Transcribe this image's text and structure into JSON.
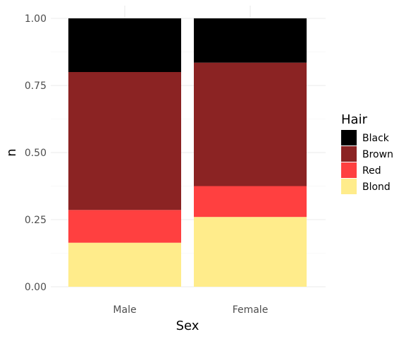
{
  "chart_data": {
    "type": "bar",
    "stacked": true,
    "categories": [
      "Male",
      "Female"
    ],
    "series": [
      {
        "name": "Black",
        "values": [
          0.2,
          0.165
        ],
        "color": "#000000"
      },
      {
        "name": "Brown",
        "values": [
          0.514,
          0.46
        ],
        "color": "#8B2323"
      },
      {
        "name": "Red",
        "values": [
          0.122,
          0.115
        ],
        "color": "#FF4040"
      },
      {
        "name": "Blond",
        "values": [
          0.164,
          0.26
        ],
        "color": "#FFEC8B"
      }
    ],
    "xlabel": "Sex",
    "ylabel": "n",
    "ylim": [
      0,
      1
    ],
    "yticks": [
      "0.00",
      "0.25",
      "0.50",
      "0.75",
      "1.00"
    ],
    "ytick_values": [
      0,
      0.25,
      0.5,
      0.75,
      1.0
    ],
    "legend": {
      "title": "Hair",
      "position": "right"
    },
    "grid": true
  }
}
